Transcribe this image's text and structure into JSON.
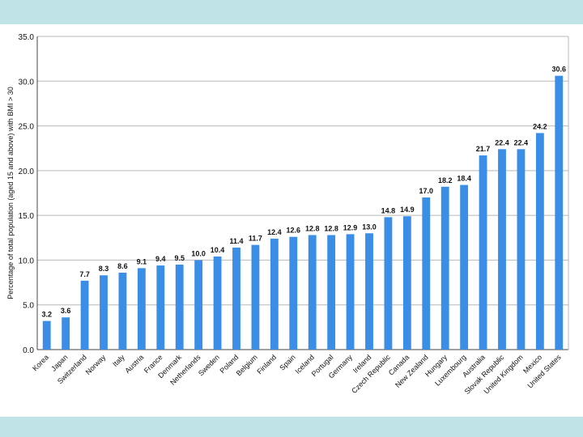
{
  "chart_data": {
    "type": "bar",
    "title": "",
    "xlabel": "",
    "ylabel": "Percentage of total population (aged 15 and above) with BMI > 30",
    "ylim": [
      0,
      35
    ],
    "yticks": [
      "0.0",
      "5.0",
      "10.0",
      "15.0",
      "20.0",
      "25.0",
      "30.0",
      "35.0"
    ],
    "grid": true,
    "legend": "none",
    "bar_color": "#3a8ee6",
    "categories": [
      "Korea",
      "Japan",
      "Switzerland",
      "Norway",
      "Italy",
      "Austria",
      "France",
      "Denmark",
      "Netherlands",
      "Sweden",
      "Poland",
      "Belgium",
      "Finland",
      "Spain",
      "Iceland",
      "Portugal",
      "Germany",
      "Ireland",
      "Czech Republic",
      "Canada",
      "New Zealand",
      "Hungary",
      "Luxembourg",
      "Australia",
      "Slovak Republic",
      "United Kingdom",
      "Mexico",
      "United States"
    ],
    "values": [
      3.2,
      3.6,
      7.7,
      8.3,
      8.6,
      9.1,
      9.4,
      9.5,
      10.0,
      10.4,
      11.4,
      11.7,
      12.4,
      12.6,
      12.8,
      12.8,
      12.9,
      13.0,
      14.8,
      14.9,
      17.0,
      18.2,
      18.4,
      21.7,
      22.4,
      22.4,
      24.2,
      30.6
    ],
    "data_labels": [
      "3.2",
      "3.6",
      "7.7",
      "8.3",
      "8.6",
      "9.1",
      "9.4",
      "9.5",
      "10.0",
      "10.4",
      "11.4",
      "11.7",
      "12.4",
      "12.6",
      "12.8",
      "12.8",
      "12.9",
      "13.0",
      "14.8",
      "14.9",
      "17.0",
      "18.2",
      "18.4",
      "21.7",
      "22.4",
      "22.4",
      "24.2",
      "30.6"
    ]
  }
}
